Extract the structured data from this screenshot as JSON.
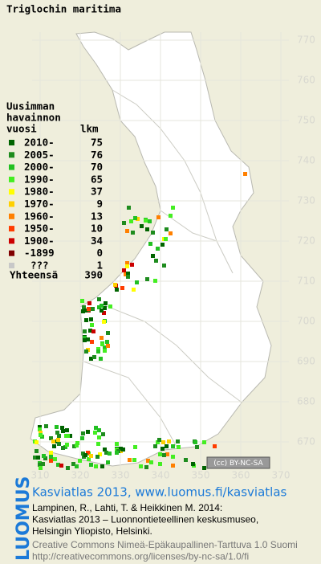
{
  "title": "Triglochin maritima",
  "legend": {
    "heading": [
      "Uusimman",
      "havainnon",
      "vuosi"
    ],
    "count_heading": "lkm",
    "rows": [
      {
        "label": "2010-",
        "count": 75,
        "color": "#006400"
      },
      {
        "label": "2005-",
        "count": 76,
        "color": "#1e8c1e"
      },
      {
        "label": "2000-",
        "count": 70,
        "color": "#22c022"
      },
      {
        "label": "1990-",
        "count": 65,
        "color": "#44ee22"
      },
      {
        "label": "1980-",
        "count": 37,
        "color": "#ffff00"
      },
      {
        "label": "1970-",
        "count": 9,
        "color": "#ffd000"
      },
      {
        "label": "1960-",
        "count": 13,
        "color": "#ff8000"
      },
      {
        "label": "1950-",
        "count": 10,
        "color": "#ff3c00"
      },
      {
        "label": "1900-",
        "count": 34,
        "color": "#cc0000"
      },
      {
        "label": "-1899",
        "count": 0,
        "color": "#800000"
      },
      {
        "label": "???",
        "count": 1,
        "color": "#c8c8c8"
      }
    ],
    "total_label": "Yhteensä",
    "total": 390
  },
  "map": {
    "xticks": [
      310,
      320,
      330,
      340,
      350,
      360,
      370
    ],
    "yticks": [
      670,
      680,
      690,
      700,
      710,
      720,
      730,
      740,
      750,
      760,
      770
    ]
  },
  "badge": "(cc) BY-NC-SA",
  "footer": {
    "logo": "LUOMUS",
    "link": "Kasviatlas 2013, www.luomus.fi/kasviatlas",
    "citation": [
      "Lampinen, R., Lahti, T. & Heikkinen M. 2014:",
      "Kasviatlas 2013 – Luonnontieteellinen keskusmuseo,",
      "Helsingin Yliopisto, Helsinki."
    ],
    "license": [
      "Creative Commons Nimeä-Epäkaupallinen-Tarttuva 1.0 Suomi",
      "http://creativecommons.org/licenses/by-nc-sa/1.0/fi"
    ]
  }
}
